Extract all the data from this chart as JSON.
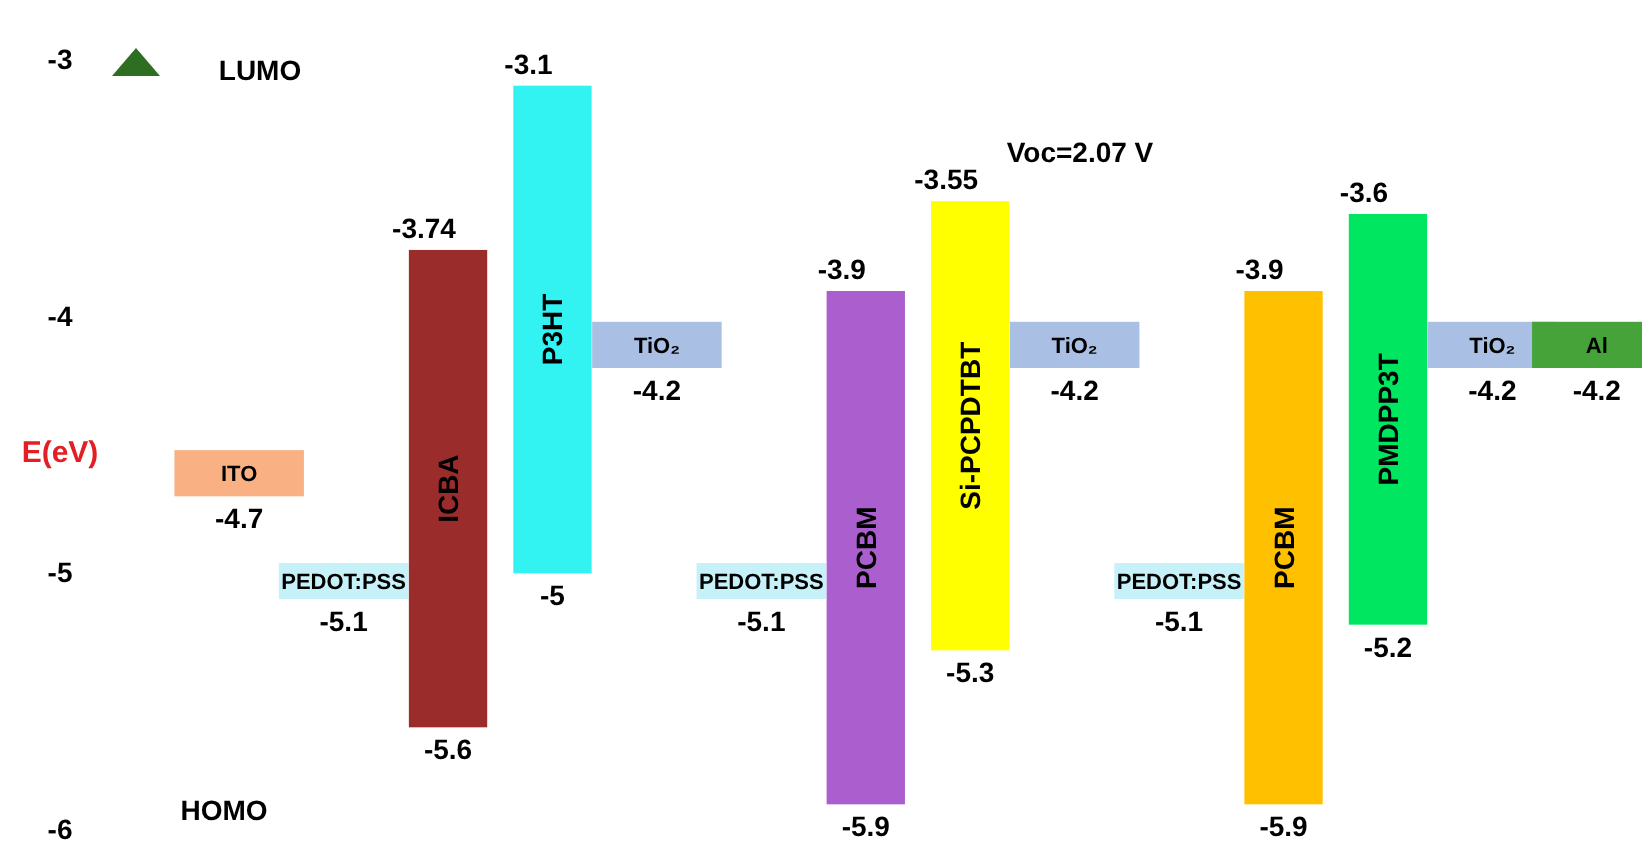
{
  "chart_data": {
    "type": "bar",
    "ylabel": "E(eV)",
    "ylim": [
      -6,
      -3
    ],
    "yticks": [
      -3,
      -4,
      -5,
      -6
    ],
    "categories": [
      "ITO",
      "PEDOT:PSS",
      "ICBA",
      "P3HT",
      "TiO₂",
      "PEDOT:PSS",
      "PCBM",
      "Si-PCPDTBT",
      "TiO₂",
      "PEDOT:PSS",
      "PCBM",
      "PMDPP3T",
      "TiO₂",
      "Al"
    ],
    "annotations": [
      "LUMO",
      "HOMO",
      "Voc=2.07 V",
      {
        "text": "-4.7",
        "x": "ITO",
        "y": -4.7
      },
      {
        "text": "-5.1",
        "x": "PEDOT:PSS",
        "y": -5.1
      },
      {
        "text": "-3.74",
        "x": "ICBA",
        "y": -3.74
      },
      {
        "text": "-5.6",
        "x": "ICBA",
        "y": -5.6
      },
      {
        "text": "-3.1",
        "x": "P3HT",
        "y": -3.1
      },
      {
        "text": "-5",
        "x": "P3HT",
        "y": -5
      },
      {
        "text": "-4.2",
        "x": "TiO₂",
        "y": -4.2
      },
      {
        "text": "-3.9",
        "x": "PCBM",
        "y": -3.9
      },
      {
        "text": "-5.9",
        "x": "PCBM",
        "y": -5.9
      },
      {
        "text": "-3.55",
        "x": "Si-PCPDTBT",
        "y": -3.55
      },
      {
        "text": "-5.3",
        "x": "Si-PCPDTBT",
        "y": -5.3
      },
      {
        "text": "-3.6",
        "x": "PMDPP3T",
        "y": -3.6
      },
      {
        "text": "-5.2",
        "x": "PMDPP3T",
        "y": -5.2
      },
      {
        "text": "-4.2",
        "x": "Al",
        "y": -4.2
      },
      "-5.1",
      "-4.2",
      "-5.1",
      "-3.9",
      "-5.9",
      "-4.2"
    ],
    "series": [
      {
        "base": [
          -4.7,
          -5.1,
          -3.74,
          -3.1,
          -4.2,
          -5.1,
          -3.9,
          -3.55,
          -4.2,
          -5.1,
          -3.9,
          -3.6,
          -4.2,
          -4.2
        ],
        "values": [
          0.18,
          0.14,
          -1.86,
          -1.9,
          0.18,
          0.14,
          -2.0,
          -1.75,
          0.18,
          0.14,
          -2.0,
          -1.6,
          0.18,
          0.18
        ],
        "colors": [
          "#f9b183",
          "#c6f1f8",
          "#9b2c2c",
          "#33f2f2",
          "#a9bfe3",
          "#c6f1f8",
          "#ab5fce",
          "#ffff00",
          "#a9bfe3",
          "#c6f1f8",
          "#ffc000",
          "#00e660",
          "#a9bfe3",
          "#46a33a"
        ]
      }
    ]
  }
}
